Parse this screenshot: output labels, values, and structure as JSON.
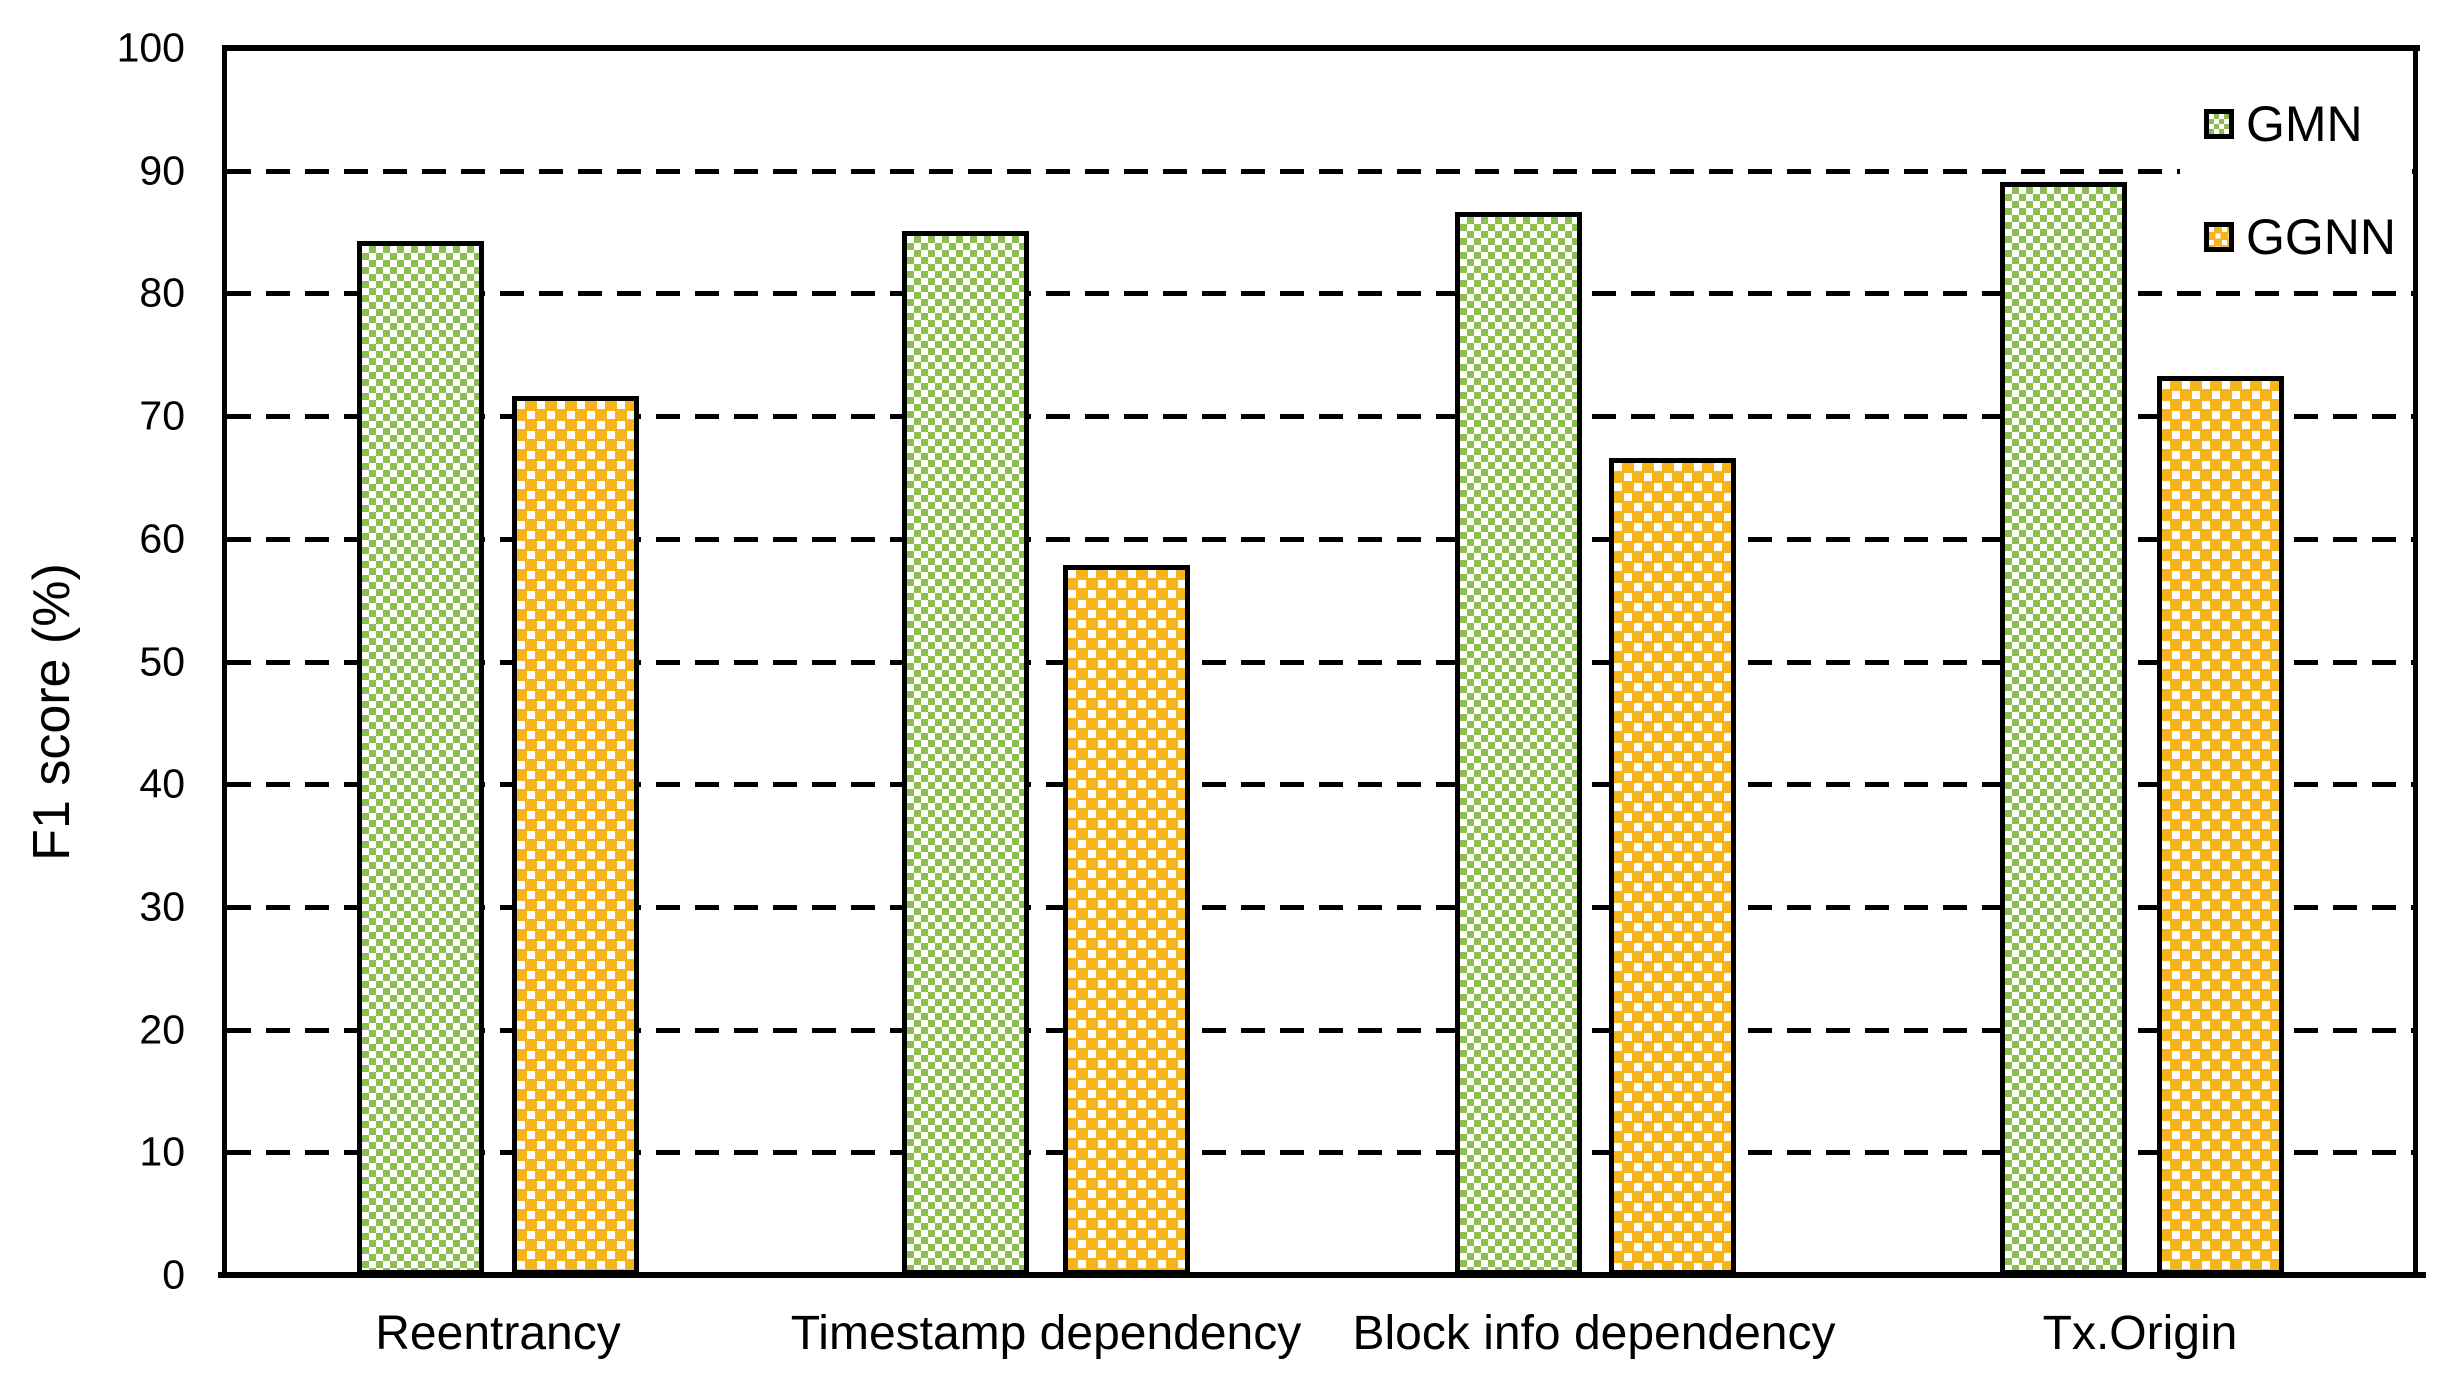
{
  "chart_data": {
    "type": "bar",
    "title": "",
    "categories": [
      "Reentrancy",
      "Timestamp dependency",
      "Block info dependency",
      "Tx.Origin"
    ],
    "series": [
      {
        "name": "GMN",
        "color": "#8cbe50",
        "pattern": "green-checker",
        "values": [
          84.3,
          85.1,
          86.6,
          89.1
        ]
      },
      {
        "name": "GGNN",
        "color": "#f6b41c",
        "pattern": "orange-plus-checker",
        "values": [
          71.6,
          57.9,
          66.6,
          73.3
        ]
      }
    ],
    "xlabel": "",
    "ylabel": "F1 score (%)",
    "ylim": [
      0,
      100
    ],
    "ytick_step": 10,
    "yticks": [
      0,
      10,
      20,
      30,
      40,
      50,
      60,
      70,
      80,
      90,
      100
    ],
    "grid": "horizontal-dashed",
    "legend_position": "top-right-inside",
    "axis_color": "#000000",
    "bar_border_color": "#000000"
  }
}
